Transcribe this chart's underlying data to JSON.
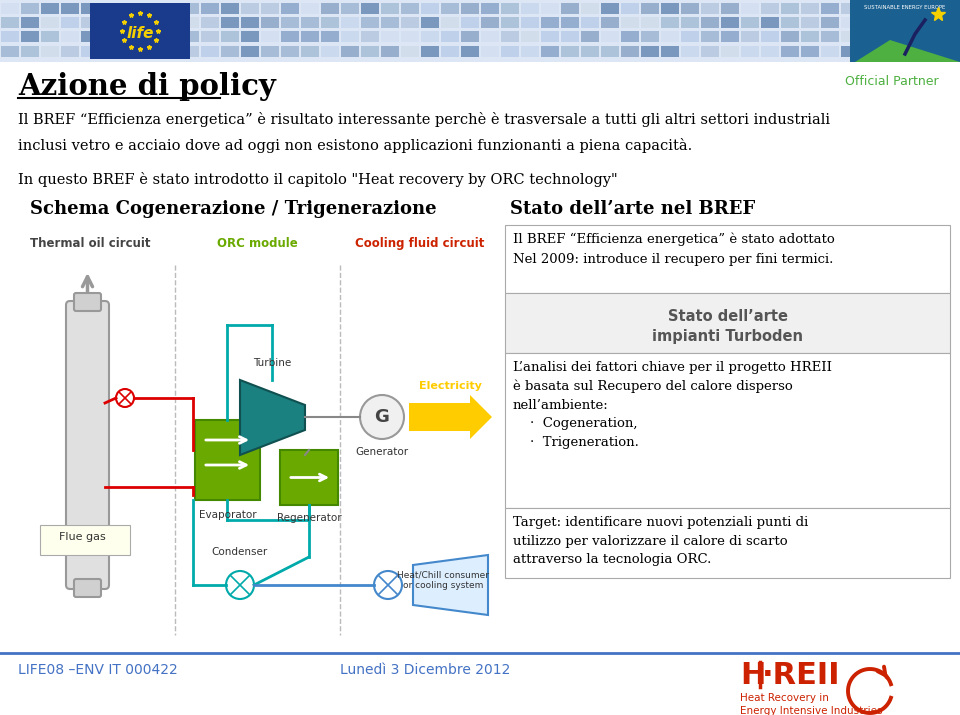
{
  "title": "Azione di policy",
  "body_text_1": "Il BREF “Efficienza energetica” è risultato interessante perchè è trasversale a tutti gli altri settori industriali",
  "body_text_2": "inclusi vetro e acciaio dove ad oggi non esistono applicazioni funzionanti a piena capacità.",
  "body_text_3": "In questo BREF è stato introdotto il capitolo \"Heat recovery by ORC technology\"",
  "left_heading": "Schema Cogenerazione / Trigenerazione",
  "right_heading": "Stato dell’arte nel BREF",
  "right_box1_line1": "Il BREF “Efficienza energetica” è stato adottato",
  "right_box1_line2": "Nel 2009: introduce il recupero per fini termici.",
  "right_box2_line1": "Stato dell’arte",
  "right_box2_line2": "impianti Turboden",
  "right_box3_line1": "L’analisi dei fattori chiave per il progetto HREII",
  "right_box3_line2": "è basata sul Recupero del calore disperso",
  "right_box3_line3": "nell’ambiente:",
  "right_box3_bullet1": "·  Cogeneration,",
  "right_box3_bullet2": "·  Trigeneration.",
  "right_box4_line1": "Target: identificare nuovi potenziali punti di",
  "right_box4_line2": "utilizzo per valorizzare il calore di scarto",
  "right_box4_line3": "attraverso la tecnologia ORC.",
  "footer_left": "LIFE08 –ENV IT 000422",
  "footer_center": "Lunedì 3 Dicembre 2012",
  "official_partner": "Official Partner",
  "bg_color": "#ffffff",
  "tile_colors": [
    "#b8c8e0",
    "#8ea8cc",
    "#c8d8ee",
    "#a0b8d4",
    "#d4e0f2",
    "#90a8c8",
    "#bcceea",
    "#7090b8",
    "#d0dcea",
    "#a8c0d8"
  ],
  "eu_bg": "#1a3a8c",
  "se_bg": "#1a6090",
  "footer_line_color": "#4472c4",
  "footer_color": "#4472c4",
  "title_color": "#000000",
  "body_color": "#000000",
  "heading_color": "#000000",
  "green_color": "#6aaa00",
  "orc_label_color": "#6aaa00",
  "cooling_label_color": "#cc2200",
  "electricity_color": "#ffcc00",
  "thermal_label_color": "#333333",
  "turbine_color": "#1a8080",
  "generator_circle_color": "#f0f0f0",
  "red_circuit_color": "#dd0000",
  "teal_pipe_color": "#00aaaa",
  "blue_pipe_color": "#4488cc",
  "gray_vessel_color": "#cccccc",
  "box_border_color": "#aaaaaa",
  "box2_bg": "#f0f0f0",
  "right_box3_text": "L’analisi dei fattori chiave per il progetto HREII\nè basata sul Recupero del calore disperso\nnell’ambiente:\n    ·  Cogeneration,\n    ·  Trigeneration.",
  "right_box4_text": "Target: identificare nuovi potenziali punti di\nutilizzo per valorizzare il calore di scarto\nattraverso la tecnologia ORC."
}
